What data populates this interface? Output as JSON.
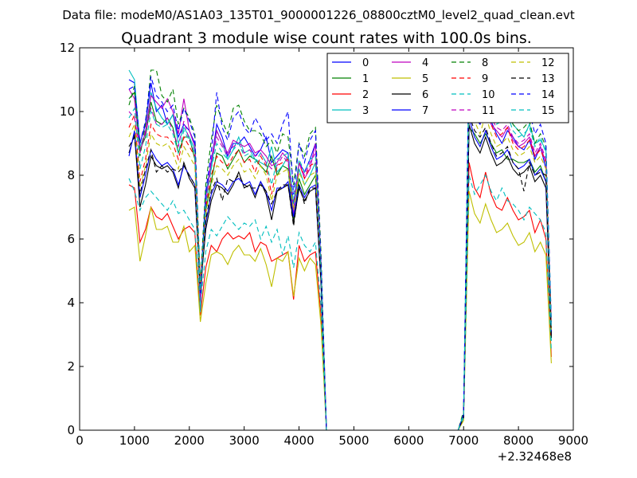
{
  "chart_data": {
    "type": "line",
    "suptitle": "Data file: modeM0/AS1A03_135T01_9000001226_08800cztM0_level2_quad_clean.evt",
    "title": "Quadrant 3 module wise count rates with 100.0s bins.",
    "x_offset_label": "+2.32468e8",
    "xlabel": "",
    "ylabel": "",
    "xlim": [
      0,
      9000
    ],
    "ylim": [
      0,
      12
    ],
    "xticks": [
      0,
      1000,
      2000,
      3000,
      4000,
      5000,
      6000,
      7000,
      8000,
      9000
    ],
    "yticks": [
      0,
      2,
      4,
      6,
      8,
      10,
      12
    ],
    "grid": false,
    "legend_position": "top-right",
    "x": [
      900,
      1000,
      1100,
      1200,
      1300,
      1400,
      1500,
      1600,
      1700,
      1800,
      1900,
      2000,
      2100,
      2200,
      2300,
      2400,
      2500,
      2600,
      2700,
      2800,
      2900,
      3000,
      3100,
      3200,
      3300,
      3400,
      3500,
      3600,
      3700,
      3800,
      3900,
      4000,
      4100,
      4200,
      4300,
      4400,
      4500,
      4600,
      6900,
      7000,
      7100,
      7200,
      7300,
      7400,
      7500,
      7600,
      7700,
      7800,
      7900,
      8000,
      8100,
      8200,
      8300,
      8400,
      8500,
      8600
    ],
    "series": [
      {
        "name": "0",
        "color": "#0000ff",
        "dash": "solid",
        "values": [
          11.0,
          10.9,
          9.0,
          9.6,
          10.9,
          10.0,
          10.2,
          9.6,
          9.9,
          9.2,
          9.6,
          9.4,
          9.0,
          4.2,
          7.4,
          8.4,
          9.6,
          9.2,
          8.6,
          9.0,
          9.0,
          9.2,
          8.9,
          8.6,
          8.8,
          9.2,
          8.4,
          8.6,
          8.8,
          8.7,
          7.1,
          8.4,
          8.1,
          8.5,
          9.0,
          5.0,
          0,
          0,
          0,
          0.5,
          10.1,
          9.8,
          9.6,
          10.1,
          9.7,
          9.3,
          9.0,
          9.4,
          9.2,
          8.9,
          8.8,
          9.1,
          8.5,
          8.9,
          8.2,
          3.0
        ]
      },
      {
        "name": "1",
        "color": "#008000",
        "dash": "solid",
        "values": [
          10.4,
          10.6,
          8.8,
          9.2,
          10.3,
          9.7,
          9.6,
          9.8,
          9.5,
          8.7,
          9.2,
          9.2,
          8.5,
          4.5,
          6.9,
          7.8,
          8.7,
          8.6,
          8.2,
          8.5,
          8.8,
          8.4,
          8.6,
          8.5,
          8.3,
          8.1,
          8.6,
          8.0,
          8.3,
          8.2,
          6.6,
          7.9,
          7.4,
          7.7,
          8.0,
          4.8,
          0,
          0,
          0,
          0.5,
          9.5,
          9.3,
          9.0,
          9.3,
          9.0,
          8.7,
          8.8,
          8.5,
          8.5,
          8.4,
          8.4,
          8.5,
          8.1,
          8.3,
          7.8,
          3.0
        ]
      },
      {
        "name": "2",
        "color": "#ff0000",
        "dash": "solid",
        "values": [
          7.7,
          7.6,
          5.9,
          6.3,
          7.0,
          6.7,
          6.6,
          6.8,
          6.4,
          6.0,
          6.3,
          6.4,
          6.2,
          3.6,
          5.1,
          5.8,
          5.6,
          6.0,
          6.2,
          6.0,
          6.1,
          6.0,
          6.2,
          5.6,
          5.9,
          5.8,
          5.3,
          5.4,
          5.5,
          5.6,
          4.1,
          5.8,
          5.3,
          5.5,
          5.6,
          3.6,
          0,
          0,
          0,
          0.4,
          8.4,
          7.6,
          7.3,
          8.1,
          7.4,
          7.0,
          6.9,
          7.3,
          6.9,
          6.6,
          6.7,
          6.9,
          6.2,
          6.6,
          6.0,
          2.3
        ]
      },
      {
        "name": "3",
        "color": "#00bfbf",
        "dash": "solid",
        "values": [
          11.3,
          11.0,
          8.9,
          9.3,
          10.6,
          10.1,
          9.8,
          9.6,
          9.9,
          9.0,
          9.5,
          9.2,
          8.8,
          3.7,
          7.5,
          8.2,
          9.4,
          9.0,
          8.5,
          8.8,
          9.2,
          8.7,
          8.8,
          8.5,
          8.4,
          8.3,
          8.9,
          8.1,
          8.3,
          8.6,
          6.9,
          8.2,
          7.7,
          8.0,
          8.4,
          5.0,
          0,
          0,
          0,
          0.5,
          11.5,
          11.3,
          10.6,
          10.8,
          10.2,
          9.7,
          9.8,
          10.0,
          9.6,
          9.4,
          9.2,
          9.6,
          9.0,
          9.1,
          8.8,
          2.8
        ]
      },
      {
        "name": "4",
        "color": "#bf00bf",
        "dash": "solid",
        "values": [
          10.7,
          10.4,
          8.7,
          9.4,
          10.5,
          10.3,
          10.1,
          10.4,
          10.0,
          9.3,
          10.4,
          9.4,
          8.9,
          4.0,
          7.1,
          8.5,
          9.4,
          9.0,
          8.7,
          9.1,
          9.0,
          8.9,
          9.0,
          8.7,
          8.8,
          8.6,
          8.3,
          8.4,
          8.7,
          8.5,
          6.8,
          8.4,
          7.9,
          8.2,
          9.0,
          5.2,
          0,
          0,
          0,
          0.5,
          10.3,
          10.0,
          9.7,
          10.2,
          9.6,
          9.4,
          9.2,
          9.5,
          9.1,
          8.9,
          9.0,
          9.2,
          8.6,
          8.9,
          8.4,
          3.3
        ]
      },
      {
        "name": "5",
        "color": "#bfbf00",
        "dash": "solid",
        "values": [
          6.9,
          7.0,
          5.3,
          6.1,
          7.0,
          6.3,
          6.3,
          6.4,
          5.9,
          5.9,
          6.4,
          5.6,
          5.8,
          3.4,
          4.6,
          5.5,
          5.6,
          5.5,
          5.2,
          5.6,
          5.8,
          5.5,
          5.5,
          5.3,
          5.7,
          5.2,
          4.5,
          5.4,
          5.3,
          5.6,
          4.2,
          5.4,
          5.0,
          5.4,
          5.2,
          3.3,
          0,
          0,
          0,
          0.3,
          7.5,
          6.8,
          6.5,
          7.1,
          6.6,
          6.2,
          6.3,
          6.5,
          6.1,
          5.8,
          5.9,
          6.2,
          5.6,
          5.9,
          5.5,
          2.1
        ]
      },
      {
        "name": "6",
        "color": "#000000",
        "dash": "solid",
        "values": [
          8.7,
          9.3,
          7.0,
          7.7,
          8.6,
          8.3,
          8.2,
          8.3,
          8.1,
          7.6,
          8.4,
          7.9,
          7.6,
          4.4,
          6.3,
          7.2,
          7.7,
          7.6,
          7.4,
          7.7,
          8.1,
          7.6,
          7.7,
          7.3,
          7.8,
          7.4,
          6.6,
          7.5,
          7.6,
          7.7,
          6.5,
          7.6,
          7.2,
          7.5,
          7.6,
          4.6,
          0,
          0,
          0,
          0.4,
          9.6,
          9.0,
          8.7,
          9.2,
          8.7,
          8.3,
          8.4,
          8.6,
          8.2,
          8.0,
          8.1,
          8.3,
          7.8,
          8.0,
          7.6,
          2.9
        ]
      },
      {
        "name": "7",
        "color": "#0000ff",
        "dash": "solid",
        "values": [
          8.6,
          9.4,
          7.3,
          8.0,
          8.8,
          8.5,
          8.3,
          8.4,
          8.2,
          7.7,
          8.3,
          8.0,
          7.7,
          4.5,
          6.5,
          7.4,
          7.8,
          7.7,
          7.5,
          7.8,
          7.9,
          7.7,
          7.8,
          7.4,
          7.8,
          7.5,
          6.9,
          7.6,
          7.6,
          7.8,
          6.7,
          7.7,
          7.3,
          7.6,
          7.7,
          4.7,
          0,
          0,
          0,
          0.4,
          9.8,
          9.2,
          8.9,
          9.4,
          8.9,
          8.5,
          8.6,
          8.8,
          8.4,
          8.2,
          8.3,
          8.5,
          8.0,
          8.2,
          7.8,
          3.0
        ]
      },
      {
        "name": "8",
        "color": "#008000",
        "dash": "dashed",
        "values": [
          10.2,
          10.8,
          8.6,
          9.6,
          11.3,
          11.3,
          10.5,
          10.3,
          10.7,
          9.6,
          10.1,
          9.8,
          9.3,
          4.6,
          7.7,
          9.1,
          10.2,
          9.7,
          9.3,
          10.1,
          10.2,
          9.7,
          9.4,
          9.4,
          9.3,
          8.9,
          9.1,
          8.7,
          9.3,
          9.2,
          7.7,
          9.0,
          8.6,
          9.3,
          9.5,
          5.6,
          0,
          0,
          0,
          0.6,
          11.3,
          10.7,
          10.3,
          10.9,
          10.2,
          9.8,
          9.9,
          10.1,
          9.6,
          9.4,
          9.5,
          9.7,
          9.0,
          9.3,
          8.9,
          3.4
        ]
      },
      {
        "name": "9",
        "color": "#ff0000",
        "dash": "dashed",
        "values": [
          9.5,
          9.9,
          7.8,
          8.5,
          9.6,
          9.3,
          9.2,
          9.2,
          9.0,
          8.5,
          9.2,
          8.9,
          8.6,
          4.6,
          7.0,
          8.0,
          8.6,
          8.4,
          8.3,
          8.6,
          8.8,
          8.4,
          8.5,
          8.1,
          8.6,
          8.3,
          7.4,
          8.3,
          8.4,
          8.5,
          7.1,
          8.4,
          7.9,
          8.3,
          8.4,
          5.0,
          0,
          0,
          0,
          0.5,
          10.6,
          10.0,
          9.6,
          10.2,
          9.6,
          9.2,
          9.3,
          9.5,
          9.0,
          8.8,
          8.9,
          9.1,
          8.6,
          8.8,
          8.4,
          3.2
        ]
      },
      {
        "name": "10",
        "color": "#00bfbf",
        "dash": "dashed",
        "values": [
          7.9,
          7.5,
          6.9,
          7.3,
          7.5,
          7.3,
          7.1,
          6.9,
          7.2,
          6.8,
          6.9,
          6.6,
          6.3,
          3.9,
          5.6,
          6.3,
          6.1,
          6.4,
          6.7,
          6.5,
          6.3,
          6.5,
          6.4,
          6.6,
          6.0,
          6.4,
          5.9,
          6.3,
          5.5,
          6.1,
          5.1,
          6.2,
          5.8,
          5.6,
          5.9,
          3.9,
          0,
          0,
          0,
          0.4,
          8.0,
          7.4,
          7.7,
          8.0,
          7.5,
          7.2,
          7.6,
          7.2,
          7.1,
          6.9,
          6.6,
          7.0,
          6.8,
          6.6,
          6.2,
          2.5
        ]
      },
      {
        "name": "11",
        "color": "#bf00bf",
        "dash": "dashed",
        "values": [
          10.0,
          9.8,
          8.8,
          9.3,
          10.1,
          9.6,
          9.6,
          9.8,
          9.4,
          8.9,
          9.7,
          9.1,
          8.7,
          4.3,
          7.2,
          8.4,
          9.2,
          8.9,
          8.6,
          8.9,
          9.0,
          8.7,
          8.8,
          8.6,
          8.7,
          8.4,
          8.2,
          8.3,
          8.6,
          8.4,
          6.9,
          8.4,
          8.0,
          8.4,
          8.7,
          5.3,
          0,
          0,
          0,
          0.5,
          10.5,
          10.1,
          9.8,
          10.3,
          9.8,
          9.5,
          9.4,
          9.6,
          9.2,
          9.0,
          9.1,
          9.3,
          8.7,
          9.0,
          8.5,
          3.3
        ]
      },
      {
        "name": "12",
        "color": "#bfbf00",
        "dash": "dashed",
        "values": [
          9.2,
          9.6,
          7.6,
          8.3,
          9.3,
          9.0,
          8.9,
          9.0,
          8.7,
          8.2,
          8.9,
          8.6,
          8.3,
          4.4,
          6.8,
          7.7,
          8.3,
          8.2,
          8.0,
          8.3,
          8.5,
          8.1,
          8.2,
          7.9,
          8.3,
          8.0,
          7.2,
          8.0,
          8.1,
          8.2,
          6.9,
          8.1,
          7.7,
          8.0,
          8.1,
          4.9,
          0,
          0,
          0,
          0.5,
          10.3,
          9.7,
          9.3,
          9.9,
          9.3,
          8.9,
          9.0,
          9.2,
          8.8,
          8.6,
          8.7,
          8.9,
          8.4,
          8.6,
          8.2,
          3.1
        ]
      },
      {
        "name": "13",
        "color": "#000000",
        "dash": "dashed",
        "values": [
          8.9,
          9.2,
          7.4,
          8.2,
          8.8,
          8.1,
          8.3,
          8.1,
          8.2,
          8.1,
          8.3,
          8.0,
          7.7,
          4.3,
          6.6,
          7.5,
          7.9,
          7.2,
          7.9,
          7.8,
          8.0,
          7.7,
          7.6,
          7.6,
          7.7,
          7.5,
          7.1,
          7.5,
          7.7,
          7.7,
          6.4,
          7.7,
          7.1,
          7.6,
          7.6,
          4.7,
          0,
          0,
          0,
          0.4,
          9.9,
          9.4,
          9.2,
          9.5,
          9.0,
          8.6,
          8.7,
          8.9,
          8.4,
          8.2,
          7.5,
          8.4,
          8.0,
          8.1,
          8.0,
          2.9
        ]
      },
      {
        "name": "14",
        "color": "#0000ff",
        "dash": "dashed",
        "values": [
          10.7,
          10.8,
          9.0,
          9.7,
          11.1,
          10.5,
          10.3,
          10.0,
          10.2,
          9.4,
          10.1,
          9.7,
          9.2,
          4.3,
          7.5,
          8.7,
          10.6,
          9.5,
          9.1,
          9.8,
          10.0,
          9.5,
          9.3,
          9.8,
          9.5,
          9.1,
          9.3,
          9.0,
          9.6,
          10.0,
          7.4,
          9.0,
          8.4,
          9.1,
          9.4,
          5.3,
          0,
          0,
          0,
          0.5,
          11.8,
          11.2,
          10.8,
          11.3,
          10.6,
          10.2,
          10.3,
          10.5,
          10.0,
          9.7,
          9.8,
          10.0,
          9.3,
          9.6,
          9.0,
          3.4
        ]
      },
      {
        "name": "15",
        "color": "#00bfbf",
        "dash": "dashed",
        "values": [
          9.8,
          10.1,
          8.2,
          8.9,
          10.0,
          9.6,
          9.5,
          9.6,
          9.3,
          8.7,
          9.4,
          9.1,
          8.7,
          4.4,
          7.1,
          8.2,
          9.0,
          8.7,
          8.5,
          8.8,
          9.0,
          8.6,
          8.7,
          8.4,
          8.7,
          8.4,
          7.7,
          8.5,
          8.6,
          8.7,
          7.1,
          8.5,
          8.1,
          8.5,
          8.6,
          5.1,
          0,
          0,
          0,
          0.5,
          11.0,
          10.4,
          10.0,
          10.6,
          10.0,
          9.6,
          9.7,
          9.9,
          9.4,
          9.2,
          9.3,
          9.5,
          8.9,
          9.2,
          8.7,
          3.2
        ]
      }
    ]
  }
}
